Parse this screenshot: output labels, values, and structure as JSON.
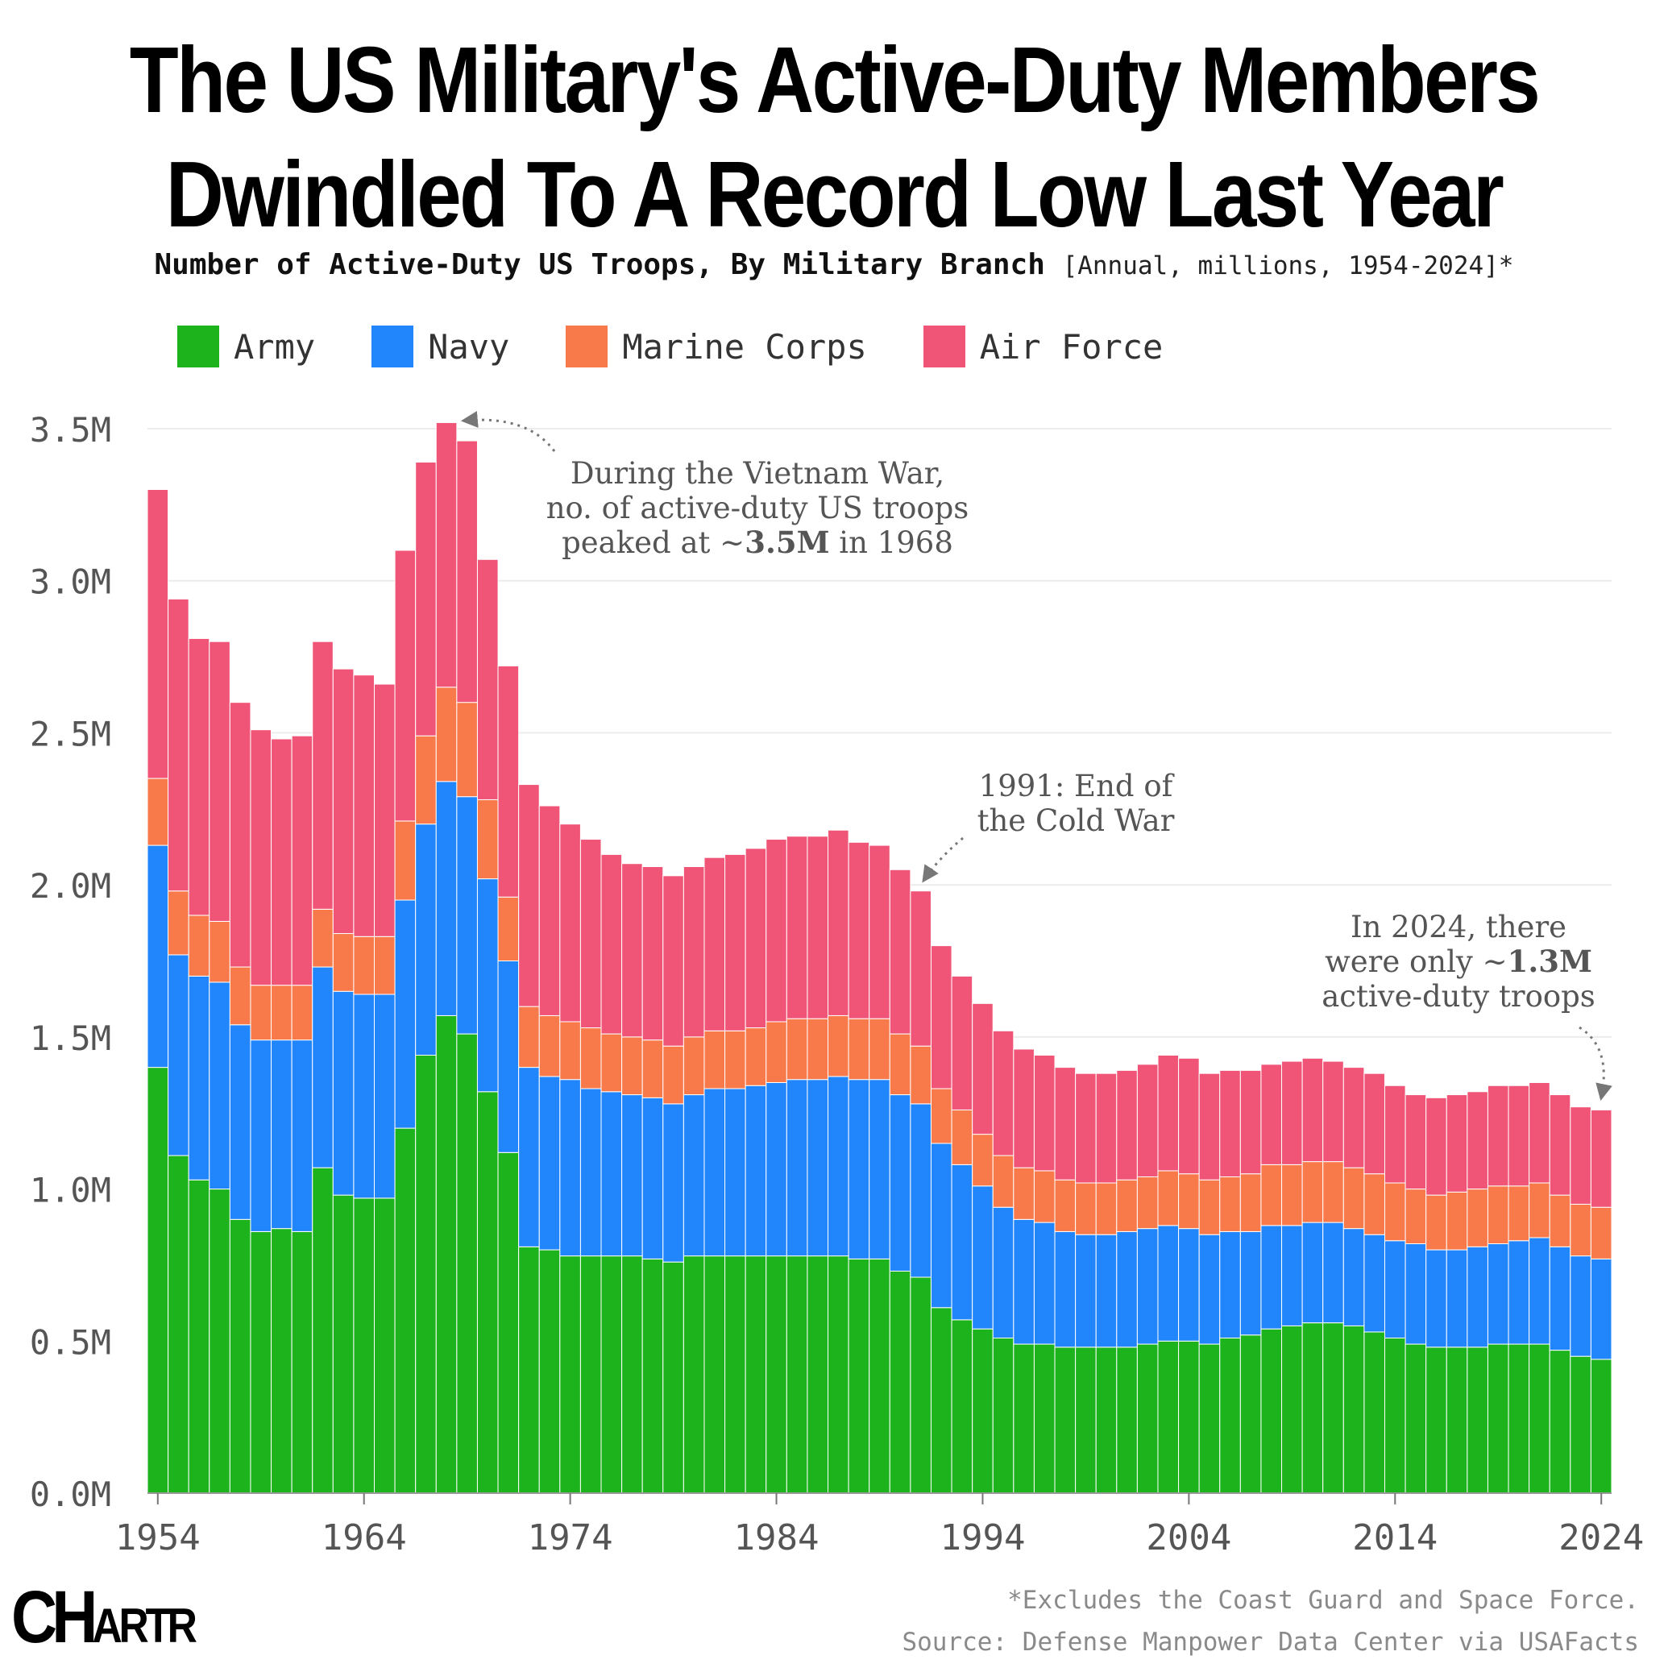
{
  "title_line1": "The US Military's Active-Duty Members",
  "title_line2": "Dwindled To A Record Low Last Year",
  "subtitle_bold": "Number of Active-Duty US Troops, By Military Branch",
  "subtitle_note": "[Annual, millions, 1954-2024]*",
  "footnote": "*Excludes the Coast Guard and Space Force.",
  "source": "Source: Defense Manpower Data Center via USAFacts",
  "logo_text": "CHARTR",
  "colors": {
    "army": "#1db31d",
    "navy": "#2185fb",
    "marine": "#f8794a",
    "airforce": "#f05578",
    "grid": "#ececec",
    "annotation": "#555555"
  },
  "chart_data": {
    "type": "bar",
    "stacked": true,
    "title": "The US Military's Active-Duty Members Dwindled To A Record Low Last Year",
    "xlabel": "",
    "ylabel": "",
    "ylim": [
      0,
      3.5
    ],
    "yticks": [
      0,
      0.5,
      1.0,
      1.5,
      2.0,
      2.5,
      3.0,
      3.5
    ],
    "ytick_labels": [
      "0.0M",
      "0.5M",
      "1.0M",
      "1.5M",
      "2.0M",
      "2.5M",
      "3.0M",
      "3.5M"
    ],
    "xticks": [
      1954,
      1964,
      1974,
      1984,
      1994,
      2004,
      2014,
      2024
    ],
    "legend_position": "top-left",
    "categories": [
      1954,
      1955,
      1956,
      1957,
      1958,
      1959,
      1960,
      1961,
      1962,
      1963,
      1964,
      1965,
      1966,
      1967,
      1968,
      1969,
      1970,
      1971,
      1972,
      1973,
      1974,
      1975,
      1976,
      1977,
      1978,
      1979,
      1980,
      1981,
      1982,
      1983,
      1984,
      1985,
      1986,
      1987,
      1988,
      1989,
      1990,
      1991,
      1992,
      1993,
      1994,
      1995,
      1996,
      1997,
      1998,
      1999,
      2000,
      2001,
      2002,
      2003,
      2004,
      2005,
      2006,
      2007,
      2008,
      2009,
      2010,
      2011,
      2012,
      2013,
      2014,
      2015,
      2016,
      2017,
      2018,
      2019,
      2020,
      2021,
      2022,
      2023,
      2024
    ],
    "series": [
      {
        "name": "Army",
        "values": [
          1.4,
          1.11,
          1.03,
          1.0,
          0.9,
          0.86,
          0.87,
          0.86,
          1.07,
          0.98,
          0.97,
          0.97,
          1.2,
          1.44,
          1.57,
          1.51,
          1.32,
          1.12,
          0.81,
          0.8,
          0.78,
          0.78,
          0.78,
          0.78,
          0.77,
          0.76,
          0.78,
          0.78,
          0.78,
          0.78,
          0.78,
          0.78,
          0.78,
          0.78,
          0.77,
          0.77,
          0.73,
          0.71,
          0.61,
          0.57,
          0.54,
          0.51,
          0.49,
          0.49,
          0.48,
          0.48,
          0.48,
          0.48,
          0.49,
          0.5,
          0.5,
          0.49,
          0.51,
          0.52,
          0.54,
          0.55,
          0.56,
          0.56,
          0.55,
          0.53,
          0.51,
          0.49,
          0.48,
          0.48,
          0.48,
          0.49,
          0.49,
          0.49,
          0.47,
          0.45,
          0.44
        ]
      },
      {
        "name": "Navy",
        "values": [
          0.73,
          0.66,
          0.67,
          0.68,
          0.64,
          0.63,
          0.62,
          0.63,
          0.66,
          0.67,
          0.67,
          0.67,
          0.75,
          0.76,
          0.77,
          0.78,
          0.7,
          0.63,
          0.59,
          0.57,
          0.58,
          0.55,
          0.54,
          0.53,
          0.53,
          0.52,
          0.53,
          0.55,
          0.55,
          0.56,
          0.57,
          0.58,
          0.58,
          0.59,
          0.59,
          0.59,
          0.58,
          0.57,
          0.54,
          0.51,
          0.47,
          0.43,
          0.41,
          0.4,
          0.38,
          0.37,
          0.37,
          0.38,
          0.38,
          0.38,
          0.37,
          0.36,
          0.35,
          0.34,
          0.34,
          0.33,
          0.33,
          0.33,
          0.32,
          0.32,
          0.32,
          0.33,
          0.32,
          0.32,
          0.33,
          0.33,
          0.34,
          0.35,
          0.34,
          0.33,
          0.33
        ]
      },
      {
        "name": "Marine Corps",
        "values": [
          0.22,
          0.21,
          0.2,
          0.2,
          0.19,
          0.18,
          0.18,
          0.18,
          0.19,
          0.19,
          0.19,
          0.19,
          0.26,
          0.29,
          0.31,
          0.31,
          0.26,
          0.21,
          0.2,
          0.2,
          0.19,
          0.2,
          0.19,
          0.19,
          0.19,
          0.19,
          0.19,
          0.19,
          0.19,
          0.19,
          0.2,
          0.2,
          0.2,
          0.2,
          0.2,
          0.2,
          0.2,
          0.19,
          0.18,
          0.18,
          0.17,
          0.17,
          0.17,
          0.17,
          0.17,
          0.17,
          0.17,
          0.17,
          0.17,
          0.18,
          0.18,
          0.18,
          0.18,
          0.19,
          0.2,
          0.2,
          0.2,
          0.2,
          0.2,
          0.2,
          0.19,
          0.18,
          0.18,
          0.19,
          0.19,
          0.19,
          0.18,
          0.18,
          0.17,
          0.17,
          0.17
        ]
      },
      {
        "name": "Air Force",
        "values": [
          0.95,
          0.96,
          0.91,
          0.92,
          0.87,
          0.84,
          0.81,
          0.82,
          0.88,
          0.87,
          0.86,
          0.83,
          0.89,
          0.9,
          0.87,
          0.86,
          0.79,
          0.76,
          0.73,
          0.69,
          0.65,
          0.62,
          0.59,
          0.57,
          0.57,
          0.56,
          0.56,
          0.57,
          0.58,
          0.59,
          0.6,
          0.6,
          0.6,
          0.61,
          0.58,
          0.57,
          0.54,
          0.51,
          0.47,
          0.44,
          0.43,
          0.41,
          0.39,
          0.38,
          0.37,
          0.36,
          0.36,
          0.36,
          0.37,
          0.38,
          0.38,
          0.35,
          0.35,
          0.34,
          0.33,
          0.34,
          0.34,
          0.33,
          0.33,
          0.33,
          0.32,
          0.31,
          0.32,
          0.32,
          0.32,
          0.33,
          0.33,
          0.33,
          0.33,
          0.32,
          0.32
        ]
      }
    ],
    "annotations": [
      {
        "year": 1968,
        "lines": [
          "During the Vietnam War,",
          "no. of active-duty US troops"
        ],
        "last_prefix": "peaked at ~",
        "last_bold": "3.5M",
        "last_suffix": " in 1968"
      },
      {
        "year": 1991,
        "lines": [
          "1991: End of",
          "the Cold War"
        ]
      },
      {
        "year": 2024,
        "lines": [
          "In 2024, there"
        ],
        "mid_prefix": "were only ~",
        "mid_bold": "1.3M",
        "last_line": "active-duty troops"
      }
    ]
  }
}
